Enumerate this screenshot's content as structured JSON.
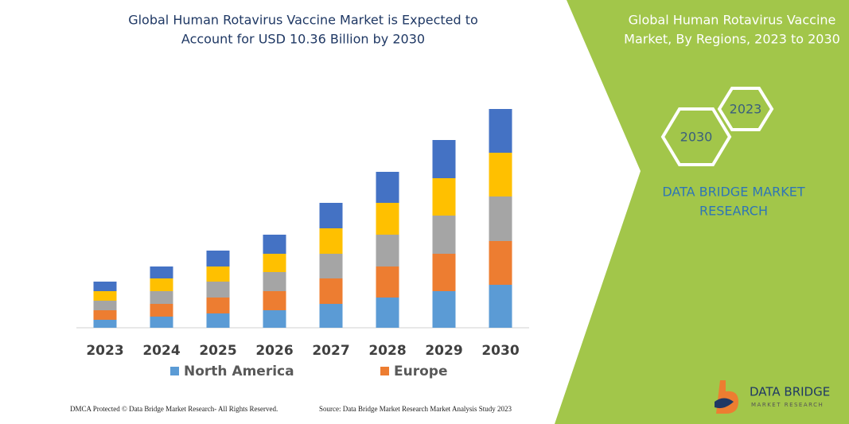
{
  "chart_data": {
    "type": "stacked-bar",
    "title": [
      "Global Human Rotavirus Vaccine Market is Expected to",
      "Account for USD 10.36 Billion by 2030"
    ],
    "categories": [
      "2023",
      "2024",
      "2025",
      "2026",
      "2027",
      "2028",
      "2029",
      "2030"
    ],
    "series": [
      {
        "name": "North America",
        "color": "#5b9bd5",
        "values": [
          10,
          14,
          18,
          22,
          30,
          38,
          46,
          54
        ]
      },
      {
        "name": "Europe",
        "color": "#ed7d31",
        "values": [
          12,
          16,
          20,
          24,
          32,
          39,
          47,
          55
        ]
      },
      {
        "color": "#a5a5a5",
        "values": [
          12,
          16,
          20,
          24,
          31,
          40,
          48,
          56
        ]
      },
      {
        "color": "#ffc000",
        "values": [
          12,
          16,
          19,
          23,
          32,
          40,
          47,
          55
        ]
      },
      {
        "color": "#4472c4",
        "values": [
          12,
          15,
          20,
          24,
          32,
          39,
          48,
          55
        ]
      }
    ]
  },
  "panel": {
    "title": [
      "Global Human Rotavirus Vaccine",
      "Market, By Regions, 2023 to 2030"
    ],
    "hexagons": [
      "2023",
      "2030"
    ],
    "brand": [
      "DATA BRIDGE MARKET",
      "RESEARCH"
    ]
  },
  "footer": {
    "copyright": "DMCA Protected © Data Bridge Market Research-  All Rights Reserved.",
    "source": "Source: Data Bridge Market Research  Market Analysis Study 2023"
  },
  "logo": {
    "name": "DATA BRIDGE",
    "tagline": "MARKET RESEARCH"
  }
}
